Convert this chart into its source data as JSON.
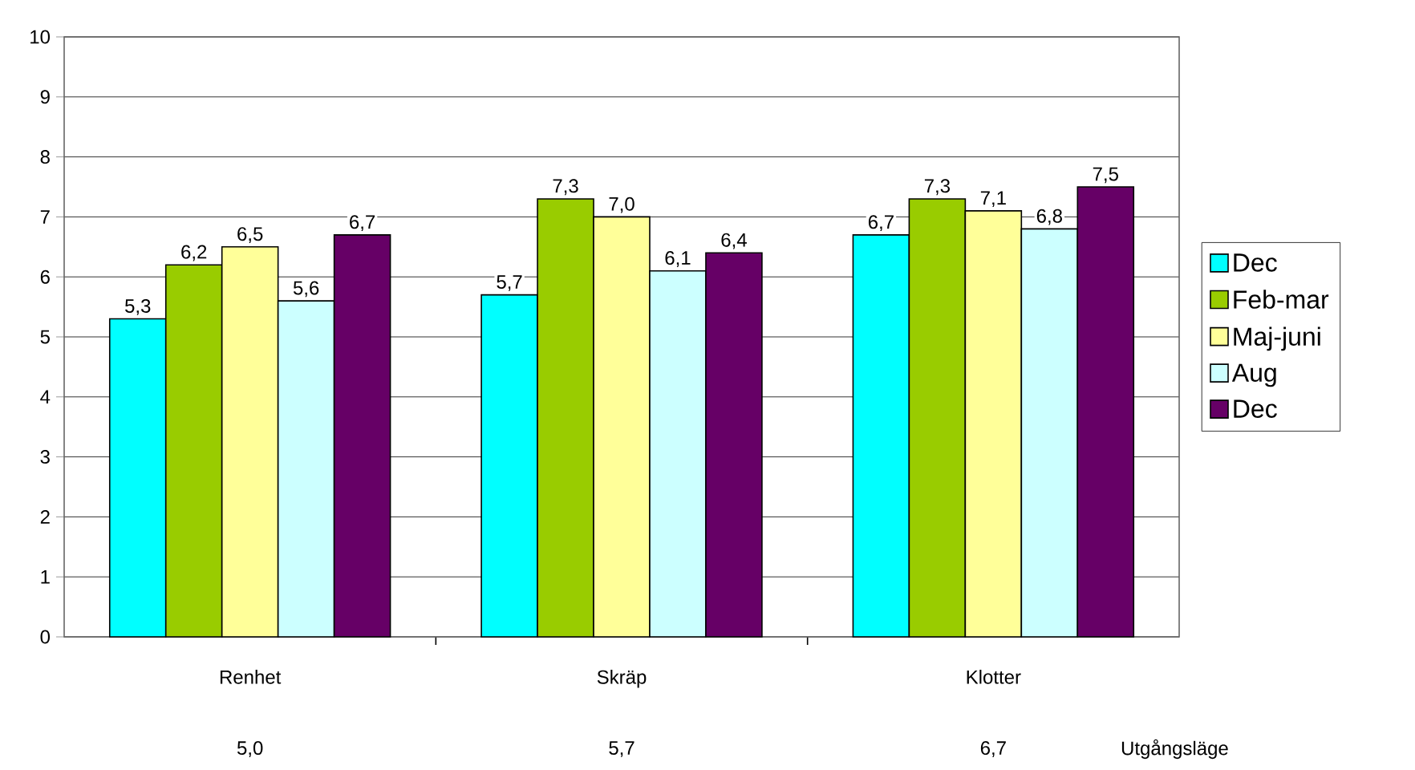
{
  "chart_data": {
    "type": "bar",
    "categories": [
      "Renhet",
      "Skräp",
      "Klotter"
    ],
    "series": [
      {
        "name": "Dec",
        "color": "#00ffff",
        "values": [
          5.3,
          5.7,
          6.7
        ],
        "value_labels": [
          "5,3",
          "5,7",
          "6,7"
        ]
      },
      {
        "name": "Feb-mar",
        "color": "#99cc00",
        "values": [
          6.2,
          7.3,
          7.3
        ],
        "value_labels": [
          "6,2",
          "7,3",
          "7,3"
        ]
      },
      {
        "name": "Maj-juni",
        "color": "#ffff99",
        "values": [
          6.5,
          7.0,
          7.1
        ],
        "value_labels": [
          "6,5",
          "7,0",
          "7,1"
        ]
      },
      {
        "name": "Aug",
        "color": "#ccffff",
        "values": [
          5.6,
          6.1,
          6.8
        ],
        "value_labels": [
          "5,6",
          "6,1",
          "6,8"
        ]
      },
      {
        "name": "Dec",
        "color": "#660066",
        "values": [
          6.7,
          6.4,
          7.5
        ],
        "value_labels": [
          "6,7",
          "6,4",
          "7,5"
        ]
      }
    ],
    "ylim": [
      0,
      10
    ],
    "yticks": [
      0,
      1,
      2,
      3,
      4,
      5,
      6,
      7,
      8,
      9,
      10
    ],
    "grid": "y",
    "legend": "right",
    "annotations": [
      "5,0",
      "5,7",
      "6,7",
      "Utgångsläge"
    ]
  }
}
